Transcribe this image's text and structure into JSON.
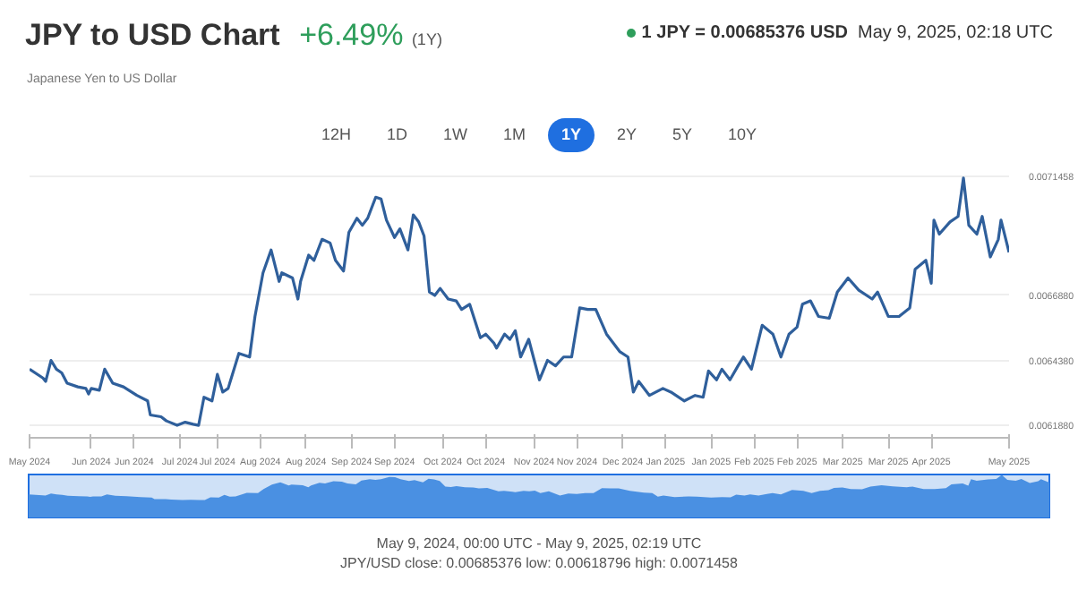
{
  "chart_data": {
    "type": "line",
    "title": "JPY to USD Chart",
    "subtitle": "Japanese Yen to US Dollar",
    "color": "#2f5f9b",
    "grid": "y",
    "annotations": [
      "+6.49%",
      "(1Y)",
      "1 JPY = 0.00685376 USD",
      "May 9, 2025, 02:18 UTC",
      "12H",
      "1D",
      "1W",
      "1M",
      "1Y",
      "2Y",
      "5Y",
      "10Y",
      "May 9, 2024, 00:00 UTC - May 9, 2025, 02:19 UTC",
      "JPY/USD close: 0.00685376 low: 0.00618796 high: 0.0071458"
    ],
    "xlim": [
      "2024-05-09",
      "2025-05-09"
    ],
    "xticks": [
      {
        "value": "2024-05-09",
        "label": "May 2024"
      },
      {
        "value": "2024-06-01",
        "label": "Jun 2024"
      },
      {
        "value": "2024-06-17",
        "label": "Jun 2024"
      },
      {
        "value": "2024-07-04",
        "label": "Jul 2024"
      },
      {
        "value": "2024-07-18",
        "label": "Jul 2024"
      },
      {
        "value": "2024-08-03",
        "label": "Aug 2024"
      },
      {
        "value": "2024-08-20",
        "label": "Aug 2024"
      },
      {
        "value": "2024-09-06",
        "label": "Sep 2024"
      },
      {
        "value": "2024-09-22",
        "label": "Sep 2024"
      },
      {
        "value": "2024-10-10",
        "label": "Oct 2024"
      },
      {
        "value": "2024-10-26",
        "label": "Oct 2024"
      },
      {
        "value": "2024-11-13",
        "label": "Nov 2024"
      },
      {
        "value": "2024-11-29",
        "label": "Nov 2024"
      },
      {
        "value": "2024-12-16",
        "label": "Dec 2024"
      },
      {
        "value": "2025-01-01",
        "label": "Jan 2025"
      },
      {
        "value": "2025-01-18",
        "label": "Jan 2025"
      },
      {
        "value": "2025-02-03",
        "label": "Feb 2025"
      },
      {
        "value": "2025-02-19",
        "label": "Feb 2025"
      },
      {
        "value": "2025-03-08",
        "label": "Mar 2025"
      },
      {
        "value": "2025-03-25",
        "label": "Mar 2025"
      },
      {
        "value": "2025-04-10",
        "label": "Apr 2025"
      },
      {
        "value": "2025-05-09",
        "label": "May 2025"
      }
    ],
    "ylim": [
      0.00614,
      0.00716
    ],
    "yticks": [
      {
        "value": 0.006188,
        "label": "0.0061880"
      },
      {
        "value": 0.006438,
        "label": "0.0064380"
      },
      {
        "value": 0.006688,
        "label": "0.0066880"
      },
      0.0071458
    ],
    "x": [
      "2024-05-09",
      "2024-05-14",
      "2024-05-15",
      "2024-05-17",
      "2024-05-19",
      "2024-05-21",
      "2024-05-23",
      "2024-05-27",
      "2024-05-30",
      "2024-05-31",
      "2024-06-01",
      "2024-06-04",
      "2024-06-06",
      "2024-06-09",
      "2024-06-13",
      "2024-06-18",
      "2024-06-22",
      "2024-06-23",
      "2024-06-27",
      "2024-06-29",
      "2024-07-03",
      "2024-07-06",
      "2024-07-09",
      "2024-07-11",
      "2024-07-13",
      "2024-07-16",
      "2024-07-18",
      "2024-07-20",
      "2024-07-22",
      "2024-07-26",
      "2024-07-30",
      "2024-08-01",
      "2024-08-04",
      "2024-08-07",
      "2024-08-10",
      "2024-08-11",
      "2024-08-15",
      "2024-08-17",
      "2024-08-18",
      "2024-08-21",
      "2024-08-23",
      "2024-08-26",
      "2024-08-29",
      "2024-08-31",
      "2024-09-03",
      "2024-09-05",
      "2024-09-08",
      "2024-09-10",
      "2024-09-12",
      "2024-09-15",
      "2024-09-17",
      "2024-09-19",
      "2024-09-22",
      "2024-09-24",
      "2024-09-27",
      "2024-09-29",
      "2024-10-01",
      "2024-10-03",
      "2024-10-05",
      "2024-10-07",
      "2024-10-09",
      "2024-10-12",
      "2024-10-15",
      "2024-10-17",
      "2024-10-20",
      "2024-10-24",
      "2024-10-26",
      "2024-10-29",
      "2024-10-30",
      "2024-11-02",
      "2024-11-04",
      "2024-11-06",
      "2024-11-08",
      "2024-11-11",
      "2024-11-15",
      "2024-11-18",
      "2024-11-21",
      "2024-11-24",
      "2024-11-27",
      "2024-11-30",
      "2024-12-03",
      "2024-12-06",
      "2024-12-10",
      "2024-12-15",
      "2024-12-18",
      "2024-12-20",
      "2024-12-22",
      "2024-12-26",
      "2024-12-31",
      "2025-01-03",
      "2025-01-08",
      "2025-01-12",
      "2025-01-15",
      "2025-01-17",
      "2025-01-20",
      "2025-01-22",
      "2025-01-25",
      "2025-01-28",
      "2025-01-30",
      "2025-02-02",
      "2025-02-06",
      "2025-02-10",
      "2025-02-13",
      "2025-02-16",
      "2025-02-19",
      "2025-02-21",
      "2025-02-24",
      "2025-02-27",
      "2025-03-03",
      "2025-03-06",
      "2025-03-10",
      "2025-03-14",
      "2025-03-19",
      "2025-03-21",
      "2025-03-25",
      "2025-03-29",
      "2025-04-02",
      "2025-04-04",
      "2025-04-08",
      "2025-04-10",
      "2025-04-11",
      "2025-04-13",
      "2025-04-17",
      "2025-04-20",
      "2025-04-22",
      "2025-04-24",
      "2025-04-27",
      "2025-04-29",
      "2025-05-02",
      "2025-05-05",
      "2025-05-06",
      "2025-05-09"
    ],
    "values": [
      0.006404,
      0.00637,
      0.006357,
      0.006438,
      0.006404,
      0.00639,
      0.00635,
      0.006336,
      0.00633,
      0.006309,
      0.00633,
      0.006323,
      0.006404,
      0.00635,
      0.006336,
      0.006303,
      0.006282,
      0.006228,
      0.006221,
      0.006205,
      0.006188,
      0.0062,
      0.006192,
      0.006188,
      0.006296,
      0.006282,
      0.006384,
      0.006316,
      0.00633,
      0.006465,
      0.006451,
      0.006607,
      0.006775,
      0.006863,
      0.006742,
      0.006775,
      0.006755,
      0.006674,
      0.006742,
      0.006843,
      0.006823,
      0.006904,
      0.00689,
      0.006823,
      0.006782,
      0.006931,
      0.006985,
      0.006958,
      0.006985,
      0.007066,
      0.007059,
      0.006978,
      0.006911,
      0.006944,
      0.006863,
      0.006998,
      0.006971,
      0.006917,
      0.006701,
      0.006688,
      0.006715,
      0.006674,
      0.006667,
      0.006634,
      0.006654,
      0.006525,
      0.006539,
      0.006505,
      0.006485,
      0.006539,
      0.006519,
      0.006552,
      0.006451,
      0.006519,
      0.006363,
      0.006438,
      0.006417,
      0.006451,
      0.006451,
      0.00664,
      0.006634,
      0.006634,
      0.006539,
      0.006471,
      0.006451,
      0.006316,
      0.006357,
      0.006303,
      0.00633,
      0.006316,
      0.006282,
      0.006303,
      0.006296,
      0.006397,
      0.006363,
      0.006404,
      0.006363,
      0.006417,
      0.006451,
      0.006404,
      0.006573,
      0.006539,
      0.006451,
      0.006539,
      0.006566,
      0.006654,
      0.006667,
      0.006607,
      0.0066,
      0.006701,
      0.006755,
      0.006708,
      0.006674,
      0.006701,
      0.006607,
      0.006607,
      0.00664,
      0.006789,
      0.006823,
      0.006735,
      0.006978,
      0.006924,
      0.006971,
      0.006992,
      0.00714,
      0.006958,
      0.006924,
      0.006992,
      0.006836,
      0.006904,
      0.006978,
      0.006854
    ]
  }
}
